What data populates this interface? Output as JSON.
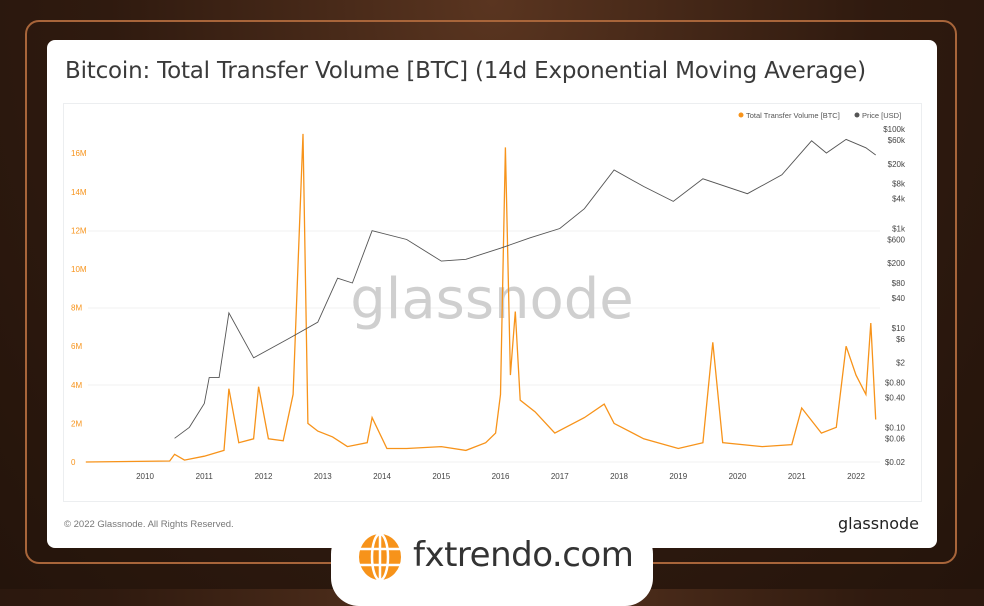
{
  "title": "Bitcoin: Total Transfer Volume [BTC] (14d Exponential Moving Average)",
  "footer": {
    "copyright": "© 2022 Glassnode. All Rights Reserved.",
    "brand": "glassnode"
  },
  "watermark": "glassnode",
  "badge": {
    "text": "fxtrendo.com",
    "icon": "globe-icon"
  },
  "colors": {
    "volume": "#f7931a",
    "price": "#555555",
    "frame": "#a8653a"
  },
  "chart_data": {
    "type": "line",
    "title": "Bitcoin: Total Transfer Volume [BTC] (14d Exponential Moving Average)",
    "legend": {
      "placement": "top-right",
      "entries": [
        "Total Transfer Volume [BTC]",
        "Price [USD]"
      ]
    },
    "x_ticks": [
      "2010",
      "2011",
      "2012",
      "2013",
      "2014",
      "2015",
      "2016",
      "2017",
      "2018",
      "2019",
      "2020",
      "2021",
      "2022"
    ],
    "y_left": {
      "ticks": [
        "0",
        "2M",
        "4M",
        "6M",
        "8M",
        "10M",
        "12M",
        "14M",
        "16M"
      ],
      "range": [
        0,
        17000000
      ],
      "scale": "linear"
    },
    "y_right": {
      "ticks": [
        "$100k",
        "$60k",
        "$20k",
        "$8k",
        "$4k",
        "$1k",
        "$600",
        "$200",
        "$80",
        "$40",
        "$10",
        "$6",
        "$2",
        "$0.80",
        "$0.40",
        "$0.10",
        "$0.06",
        "$0.02"
      ],
      "range": [
        0.02,
        100000
      ],
      "scale": "log"
    },
    "grid": true,
    "series": [
      {
        "name": "Total Transfer Volume [BTC]",
        "axis": "left",
        "x": [
          "2009-01",
          "2010-06",
          "2010-07",
          "2010-09",
          "2011-01",
          "2011-05",
          "2011-06",
          "2011-08",
          "2011-11",
          "2011-12",
          "2012-02",
          "2012-05",
          "2012-07",
          "2012-09",
          "2012-10",
          "2012-12",
          "2013-03",
          "2013-06",
          "2013-10",
          "2013-11",
          "2014-02",
          "2014-06",
          "2015-01",
          "2015-06",
          "2015-10",
          "2015-12",
          "2016-01",
          "2016-02",
          "2016-03",
          "2016-04",
          "2016-05",
          "2016-08",
          "2016-12",
          "2017-06",
          "2017-10",
          "2017-12",
          "2018-06",
          "2019-01",
          "2019-06",
          "2019-08",
          "2019-10",
          "2020-06",
          "2020-12",
          "2021-02",
          "2021-06",
          "2021-09",
          "2021-11",
          "2022-01",
          "2022-03",
          "2022-04",
          "2022-05"
        ],
        "values": [
          0,
          0.05,
          0.4,
          0.1,
          0.3,
          0.6,
          3.8,
          1.0,
          1.2,
          3.9,
          1.2,
          1.1,
          3.5,
          17.0,
          2.0,
          1.6,
          1.3,
          0.8,
          1.0,
          2.3,
          0.7,
          0.7,
          0.8,
          0.6,
          1.0,
          1.5,
          3.5,
          16.3,
          4.5,
          7.8,
          3.2,
          2.6,
          1.5,
          2.3,
          3.0,
          2.0,
          1.2,
          0.7,
          1.0,
          6.2,
          1.0,
          0.8,
          0.9,
          2.8,
          1.5,
          1.8,
          6.0,
          4.5,
          3.5,
          7.2,
          2.2
        ]
      },
      {
        "name": "Price [USD]",
        "axis": "right",
        "x": [
          "2010-07",
          "2010-10",
          "2011-01",
          "2011-02",
          "2011-04",
          "2011-06",
          "2011-11",
          "2012-06",
          "2012-12",
          "2013-04",
          "2013-07",
          "2013-11",
          "2014-06",
          "2015-01",
          "2015-06",
          "2016-01",
          "2016-07",
          "2017-01",
          "2017-06",
          "2017-12",
          "2018-06",
          "2018-12",
          "2019-06",
          "2020-03",
          "2020-10",
          "2021-04",
          "2021-07",
          "2021-11",
          "2022-03",
          "2022-05"
        ],
        "values": [
          0.06,
          0.1,
          0.3,
          1,
          1,
          20,
          2.5,
          6,
          13,
          100,
          80,
          900,
          600,
          220,
          240,
          400,
          650,
          1000,
          2500,
          15000,
          7000,
          3500,
          10000,
          5000,
          12000,
          58000,
          33000,
          62000,
          42000,
          30000
        ]
      }
    ]
  }
}
